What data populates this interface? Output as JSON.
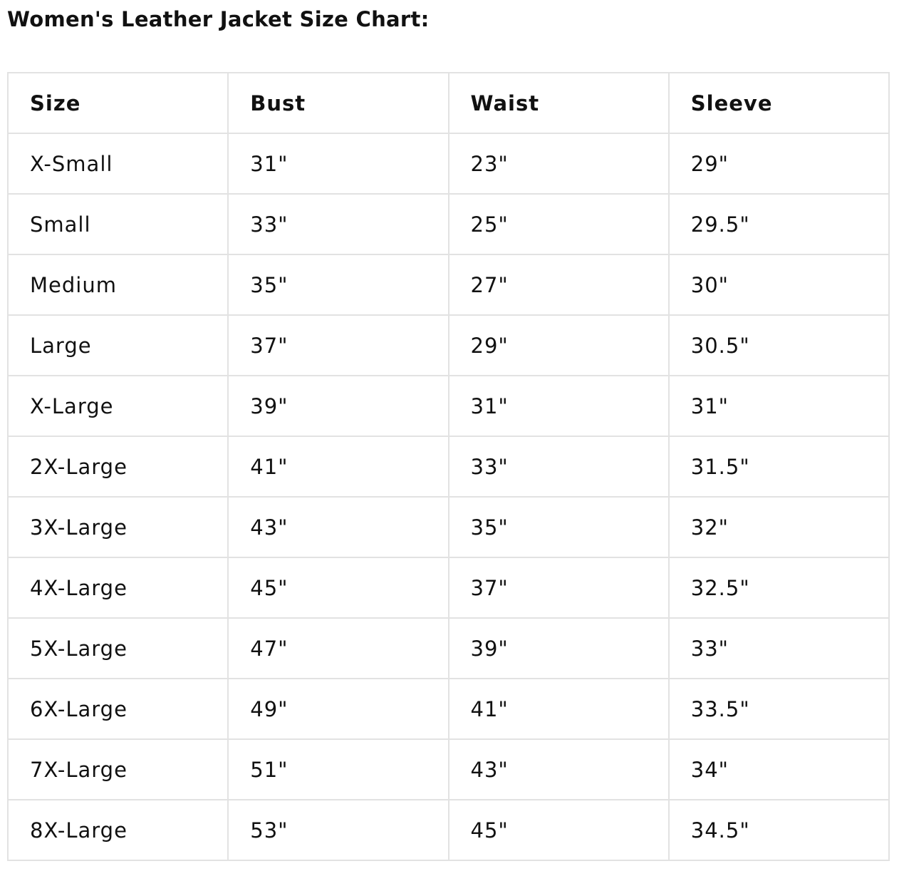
{
  "title": "Women's Leather Jacket Size Chart:",
  "table": {
    "headers": [
      "Size",
      "Bust",
      "Waist",
      "Sleeve"
    ],
    "rows": [
      [
        "X-Small",
        "31\"",
        "23\"",
        "29\""
      ],
      [
        "Small",
        "33\"",
        "25\"",
        "29.5\""
      ],
      [
        "Medium",
        "35\"",
        "27\"",
        "30\""
      ],
      [
        "Large",
        "37\"",
        "29\"",
        "30.5\""
      ],
      [
        "X-Large",
        "39\"",
        "31\"",
        "31\""
      ],
      [
        "2X-Large",
        "41\"",
        "33\"",
        "31.5\""
      ],
      [
        "3X-Large",
        "43\"",
        "35\"",
        "32\""
      ],
      [
        "4X-Large",
        "45\"",
        "37\"",
        "32.5\""
      ],
      [
        "5X-Large",
        "47\"",
        "39\"",
        "33\""
      ],
      [
        "6X-Large",
        "49\"",
        "41\"",
        "33.5\""
      ],
      [
        "7X-Large",
        "51\"",
        "43\"",
        "34\""
      ],
      [
        "8X-Large",
        "53\"",
        "45\"",
        "34.5\""
      ]
    ]
  },
  "colors": {
    "border": "#e2e2e2",
    "text": "#111111"
  }
}
